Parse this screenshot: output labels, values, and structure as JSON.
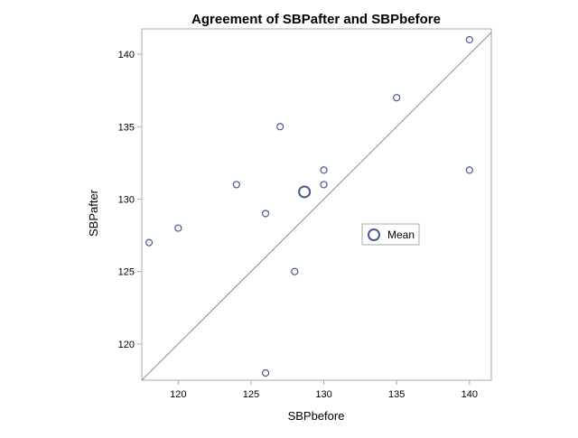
{
  "chart_data": {
    "type": "scatter",
    "title": "Agreement of SBPafter and SBPbefore",
    "xlabel": "SBPbefore",
    "ylabel": "SBPafter",
    "xlim": [
      117.5,
      141.5
    ],
    "ylim": [
      117.5,
      141.75
    ],
    "xticks": [
      120,
      125,
      130,
      135,
      140
    ],
    "yticks": [
      120,
      125,
      130,
      135,
      140
    ],
    "grid": false,
    "legend_position": "center-right",
    "reference_line": "y = x",
    "points": [
      {
        "x": 118,
        "y": 127
      },
      {
        "x": 120,
        "y": 128
      },
      {
        "x": 124,
        "y": 131
      },
      {
        "x": 126,
        "y": 129
      },
      {
        "x": 126,
        "y": 118
      },
      {
        "x": 127,
        "y": 135
      },
      {
        "x": 128,
        "y": 125
      },
      {
        "x": 130,
        "y": 132
      },
      {
        "x": 130,
        "y": 131
      },
      {
        "x": 135,
        "y": 137
      },
      {
        "x": 140,
        "y": 141
      },
      {
        "x": 140,
        "y": 132
      }
    ],
    "mean_point": {
      "x": 128.67,
      "y": 130.5
    },
    "legend": [
      {
        "name": "Mean"
      }
    ],
    "colors": {
      "marker": "#46598f",
      "frame": "#aaaaaa",
      "reference_line": "#8c8c8c",
      "text": "#000000"
    }
  }
}
